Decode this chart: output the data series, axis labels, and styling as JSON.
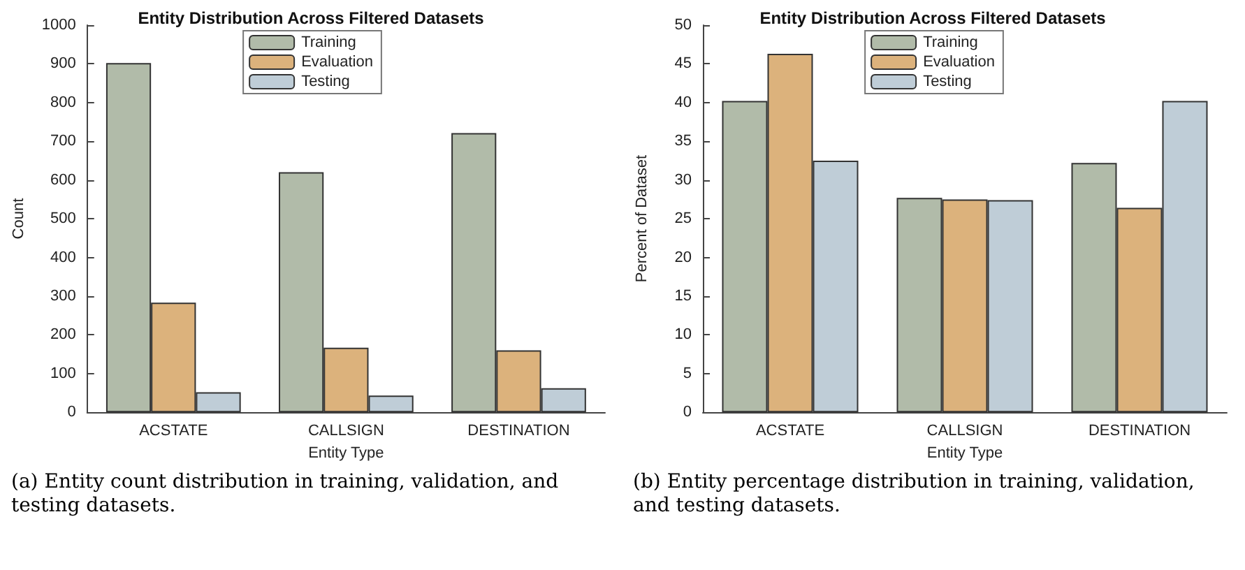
{
  "chart_data": [
    {
      "type": "bar",
      "title": "Entity Distribution Across Filtered Datasets",
      "xlabel": "Entity Type",
      "ylabel": "Count",
      "categories": [
        "ACSTATE",
        "CALLSIGN",
        "DESTINATION"
      ],
      "series": [
        {
          "name": "Training",
          "color": "#b1bba9",
          "values": [
            902,
            620,
            721
          ]
        },
        {
          "name": "Evaluation",
          "color": "#dcb27c",
          "values": [
            283,
            167,
            160
          ]
        },
        {
          "name": "Testing",
          "color": "#bfcdd7",
          "values": [
            52,
            43,
            62
          ]
        }
      ],
      "ylim": [
        0,
        1000
      ],
      "yticks": [
        0,
        100,
        200,
        300,
        400,
        500,
        600,
        700,
        800,
        900,
        1000
      ],
      "grid": false,
      "legend": "top",
      "annotations": [
        "(a) Entity count distribution in training, validation, and testing datasets."
      ]
    },
    {
      "type": "bar",
      "title": "Entity Distribution Across Filtered Datasets",
      "xlabel": "Entity Type",
      "ylabel": "Percent of Dataset",
      "categories": [
        "ACSTATE",
        "CALLSIGN",
        "DESTINATION"
      ],
      "series": [
        {
          "name": "Training",
          "color": "#b1bba9",
          "values": [
            40.2,
            27.7,
            32.2
          ]
        },
        {
          "name": "Evaluation",
          "color": "#dcb27c",
          "values": [
            46.3,
            27.5,
            26.4
          ]
        },
        {
          "name": "Testing",
          "color": "#bfcdd7",
          "values": [
            32.5,
            27.4,
            40.2
          ]
        }
      ],
      "ylim": [
        0,
        50
      ],
      "yticks": [
        0,
        5,
        10,
        15,
        20,
        25,
        30,
        35,
        40,
        45,
        50
      ],
      "grid": false,
      "legend": "top",
      "annotations": [
        "(b) Entity percentage distribution in training, validation, and testing datasets."
      ]
    }
  ]
}
